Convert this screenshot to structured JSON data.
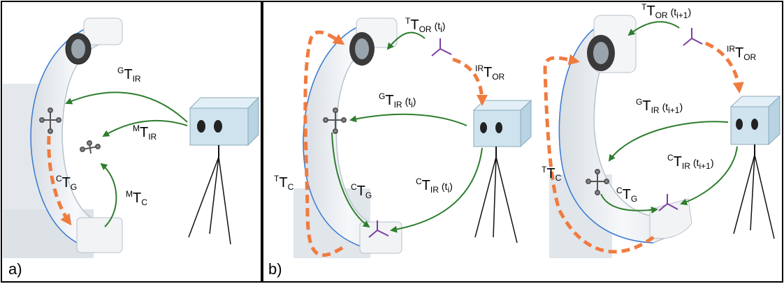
{
  "panels": {
    "a": {
      "letter": "a)",
      "labels": {
        "g_t_ir": {
          "sup": "G",
          "main": "T",
          "sub": "IR"
        },
        "m_t_ir": {
          "sup": "M",
          "main": "T",
          "sub": "IR"
        },
        "c_t_g": {
          "sup": "C",
          "main": "T",
          "sub": "G"
        },
        "m_t_c": {
          "sup": "M",
          "main": "T",
          "sub": "C"
        }
      }
    },
    "b": {
      "letter": "b)",
      "labels": {
        "t_t_or_ti": {
          "sup": "T",
          "main": "T",
          "sub": "OR",
          "arg": "(t",
          "argsub": "i",
          "close": ")"
        },
        "ir_t_or_1": {
          "sup": "IR",
          "main": "T",
          "sub": "OR"
        },
        "g_t_ir_ti": {
          "sup": "G",
          "main": "T",
          "sub": "IR",
          "arg": "(t",
          "argsub": "i",
          "close": ")"
        },
        "t_t_c_1": {
          "sup": "T",
          "main": "T",
          "sub": "C"
        },
        "c_t_g_1": {
          "sup": "C",
          "main": "T",
          "sub": "G"
        },
        "c_t_ir_ti": {
          "sup": "C",
          "main": "T",
          "sub": "IR",
          "arg": "(t",
          "argsub": "i",
          "close": ")"
        },
        "t_t_or_ti1": {
          "sup": "T",
          "main": "T",
          "sub": "OR",
          "arg": "(t",
          "argsub": "i+1",
          "close": ")"
        },
        "ir_t_or_2": {
          "sup": "IR",
          "main": "T",
          "sub": "OR"
        },
        "g_t_ir_ti1": {
          "sup": "G",
          "main": "T",
          "sub": "IR",
          "arg": "(t",
          "argsub": "i+1",
          "close": ")"
        },
        "c_t_ir_ti1": {
          "sup": "C",
          "main": "T",
          "sub": "IR",
          "arg": "(t",
          "argsub": "i+1",
          "close": ")"
        },
        "t_t_c_2": {
          "sup": "T",
          "main": "T",
          "sub": "C"
        },
        "c_t_g_2": {
          "sup": "C",
          "main": "T",
          "sub": "G"
        }
      }
    }
  },
  "colors": {
    "green_arrow": "#2e7d2e",
    "orange_dashed": "#f07b3f",
    "purple_marker": "#7a3ea0",
    "carm_body": "#eef1f4",
    "carm_edge": "#b9c2cc",
    "blue_edge": "#3a7bd5",
    "camera": "#cfe3ef",
    "frame": "#000000"
  }
}
